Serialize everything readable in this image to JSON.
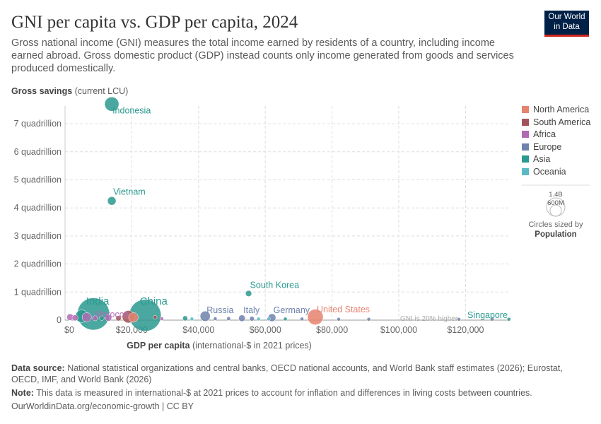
{
  "header": {
    "title": "GNI per capita vs. GDP per capita, 2024",
    "subtitle": "Gross national income (GNI) measures the total income earned by residents of a country, including income earned abroad. Gross domestic product (GDP) instead counts only income generated from goods and services produced domestically.",
    "logo": "Our World in Data"
  },
  "legend": {
    "items": [
      {
        "label": "North America",
        "color": "#e6836f"
      },
      {
        "label": "South America",
        "color": "#a2545c"
      },
      {
        "label": "Africa",
        "color": "#b16bb4"
      },
      {
        "label": "Europe",
        "color": "#6f82ab"
      },
      {
        "label": "Asia",
        "color": "#2a998f"
      },
      {
        "label": "Oceania",
        "color": "#5bbac5"
      }
    ],
    "size_big": "1.4B",
    "size_small": "600M",
    "size_caption": "Circles sized by",
    "size_var": "Population"
  },
  "chart_data": {
    "type": "scatter",
    "title": "GNI per capita vs. GDP per capita, 2024",
    "ylabel_bold": "Gross savings",
    "ylabel_rest": " (current LCU)",
    "xlabel_bold": "GDP per capita",
    "xlabel_rest": " (international-$ in 2021 prices)",
    "xlim": [
      0,
      133000
    ],
    "ylim": [
      0,
      7.7
    ],
    "xticks": [
      {
        "v": 0,
        "label": "$0"
      },
      {
        "v": 20000,
        "label": "$20,000"
      },
      {
        "v": 40000,
        "label": "$40,000"
      },
      {
        "v": 60000,
        "label": "$60,000"
      },
      {
        "v": 80000,
        "label": "$80,000"
      },
      {
        "v": 100000,
        "label": "$100,000"
      },
      {
        "v": 120000,
        "label": "$120,000"
      }
    ],
    "yticks": [
      {
        "v": 0,
        "label": "0"
      },
      {
        "v": 1,
        "label": "1 quadrillion"
      },
      {
        "v": 2,
        "label": "2 quadrillion"
      },
      {
        "v": 3,
        "label": "3 quadrillion"
      },
      {
        "v": 4,
        "label": "4 quadrillion"
      },
      {
        "v": 5,
        "label": "5 quadrillion"
      },
      {
        "v": 6,
        "label": "6 quadrillion"
      },
      {
        "v": 7,
        "label": "7 quadrillion"
      }
    ],
    "annotation": "GNI is 20% higher",
    "points": [
      {
        "name": "Indonesia",
        "x": 14000,
        "y": 7.7,
        "pop": 280,
        "region": "Asia",
        "label": true
      },
      {
        "name": "Vietnam",
        "x": 14000,
        "y": 4.25,
        "pop": 100,
        "region": "Asia",
        "label": true
      },
      {
        "name": "South Korea",
        "x": 55000,
        "y": 0.95,
        "pop": 52,
        "region": "Asia",
        "label": true
      },
      {
        "name": "India",
        "x": 8500,
        "y": 0.12,
        "pop": 1440,
        "region": "Asia",
        "label": true
      },
      {
        "name": "China",
        "x": 24000,
        "y": 0.07,
        "pop": 1410,
        "region": "Asia",
        "label": true
      },
      {
        "name": "Morocco",
        "x": 9000,
        "y": 0.02,
        "pop": 37,
        "region": "Africa",
        "label": true
      },
      {
        "name": "Russia",
        "x": 42000,
        "y": 0.05,
        "pop": 144,
        "region": "Europe",
        "label": true
      },
      {
        "name": "Italy",
        "x": 53000,
        "y": 0.01,
        "pop": 59,
        "region": "Europe",
        "label": true
      },
      {
        "name": "Germany",
        "x": 62000,
        "y": 0.02,
        "pop": 84,
        "region": "Europe",
        "label": true
      },
      {
        "name": "United States",
        "x": 75000,
        "y": 0.01,
        "pop": 340,
        "region": "North America",
        "label": true
      },
      {
        "name": "Singapore",
        "x": 133000,
        "y": 0.0,
        "pop": 6,
        "region": "Asia",
        "label": true
      },
      {
        "name": "",
        "x": 1500,
        "y": 0.05,
        "pop": 60,
        "region": "Africa"
      },
      {
        "name": "",
        "x": 3000,
        "y": 0.03,
        "pop": 50,
        "region": "Africa"
      },
      {
        "name": "",
        "x": 5000,
        "y": 0.04,
        "pop": 220,
        "region": "Asia"
      },
      {
        "name": "",
        "x": 6500,
        "y": 0.02,
        "pop": 120,
        "region": "Africa"
      },
      {
        "name": "",
        "x": 11000,
        "y": 0.03,
        "pop": 30,
        "region": "Asia"
      },
      {
        "name": "",
        "x": 13000,
        "y": 0.02,
        "pop": 60,
        "region": "Africa"
      },
      {
        "name": "",
        "x": 16000,
        "y": 0.02,
        "pop": 40,
        "region": "South America"
      },
      {
        "name": "",
        "x": 19000,
        "y": 0.02,
        "pop": 215,
        "region": "South America"
      },
      {
        "name": "",
        "x": 20500,
        "y": 0.01,
        "pop": 130,
        "region": "North America"
      },
      {
        "name": "",
        "x": 27000,
        "y": 0.07,
        "pop": 20,
        "region": "South America"
      },
      {
        "name": "",
        "x": 29000,
        "y": 0.02,
        "pop": 10,
        "region": "Africa"
      },
      {
        "name": "",
        "x": 36000,
        "y": 0.02,
        "pop": 35,
        "region": "Asia"
      },
      {
        "name": "",
        "x": 38000,
        "y": 0.01,
        "pop": 10,
        "region": "Oceania"
      },
      {
        "name": "",
        "x": 45000,
        "y": 0.02,
        "pop": 10,
        "region": "Europe"
      },
      {
        "name": "",
        "x": 49000,
        "y": 0.02,
        "pop": 20,
        "region": "Europe"
      },
      {
        "name": "",
        "x": 56000,
        "y": 0.01,
        "pop": 30,
        "region": "Europe"
      },
      {
        "name": "",
        "x": 58000,
        "y": 0.01,
        "pop": 5,
        "region": "Oceania"
      },
      {
        "name": "",
        "x": 61000,
        "y": 0.01,
        "pop": 5,
        "region": "Oceania"
      },
      {
        "name": "",
        "x": 66000,
        "y": 0.01,
        "pop": 5,
        "region": "Asia"
      },
      {
        "name": "",
        "x": 71000,
        "y": 0.01,
        "pop": 5,
        "region": "Europe"
      },
      {
        "name": "",
        "x": 82000,
        "y": 0.0,
        "pop": 5,
        "region": "Europe"
      },
      {
        "name": "",
        "x": 91000,
        "y": 0.0,
        "pop": 3,
        "region": "Europe"
      },
      {
        "name": "",
        "x": 118000,
        "y": 0.0,
        "pop": 2,
        "region": "Europe"
      },
      {
        "name": "",
        "x": 128000,
        "y": 0.0,
        "pop": 2,
        "region": "Europe"
      }
    ]
  },
  "footer": {
    "source_label": "Data source:",
    "source": " National statistical organizations and central banks, OECD national accounts, and World Bank staff estimates (2026); Eurostat, OECD, IMF, and World Bank (2026)",
    "note_label": "Note:",
    "note": " This data is measured in international-$ at 2021 prices to account for inflation and differences in living costs between countries.",
    "url": "OurWorldinData.org/economic-growth | CC BY"
  }
}
